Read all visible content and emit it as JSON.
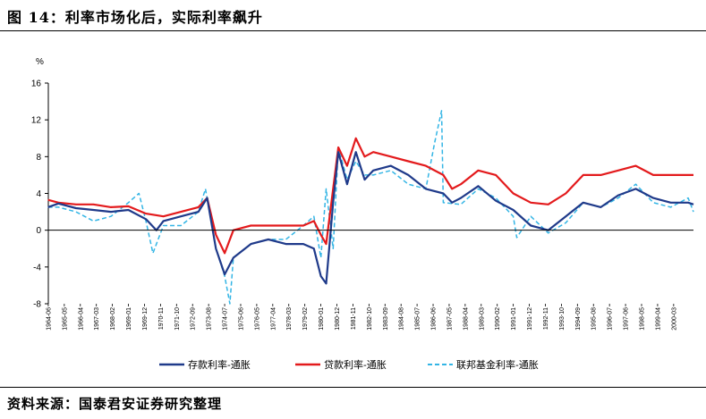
{
  "title": "图 14：利率市场化后，实际利率飙升",
  "source": "资料来源：国泰君安证券研究整理",
  "colors": {
    "deposit": "#1f3a8a",
    "loan": "#e31a1c",
    "fed": "#33b5e5"
  },
  "chart_data": {
    "type": "line",
    "ylabel": "%",
    "ylim": [
      -8,
      16
    ],
    "yticks": [
      -8,
      -4,
      0,
      4,
      8,
      12,
      16
    ],
    "x_tick_labels": [
      "1964-06",
      "1965-05",
      "1966-04",
      "1967-03",
      "1968-02",
      "1969-01",
      "1969-12",
      "1970-11",
      "1971-10",
      "1972-09",
      "1973-08",
      "1974-07",
      "1975-06",
      "1976-05",
      "1977-04",
      "1978-03",
      "1979-02",
      "1980-01",
      "1980-12",
      "1981-11",
      "1982-10",
      "1983-09",
      "1984-08",
      "1985-07",
      "1986-06",
      "1987-05",
      "1988-04",
      "1989-03",
      "1990-02",
      "1991-01",
      "1991-12",
      "1992-11",
      "1993-10",
      "1994-09",
      "1995-08",
      "1996-07",
      "1997-06",
      "1998-05",
      "1999-04",
      "2000-03"
    ],
    "x_range": [
      1964.42,
      2001.3
    ],
    "series": [
      {
        "name": "存款利率-通胀",
        "key": "deposit",
        "x": [
          1964.4,
          1965,
          1966,
          1967,
          1968,
          1969,
          1970,
          1970.6,
          1971,
          1972,
          1973,
          1973.5,
          1974,
          1974.5,
          1975,
          1976,
          1977,
          1978,
          1979,
          1979.6,
          1980,
          1980.3,
          1980.7,
          1981,
          1981.5,
          1982,
          1982.5,
          1983,
          1984,
          1985,
          1986,
          1987,
          1987.5,
          1988,
          1989,
          1990,
          1991,
          1992,
          1993,
          1994,
          1995,
          1996,
          1997,
          1998,
          1999,
          2000,
          2001,
          2001.3
        ],
        "values": [
          2.5,
          2.9,
          2.4,
          2.2,
          2.0,
          2.2,
          1.2,
          0.0,
          1.0,
          1.5,
          2.0,
          3.5,
          -2.0,
          -4.8,
          -3.0,
          -1.5,
          -1.0,
          -1.5,
          -1.5,
          -2.0,
          -5.0,
          -5.8,
          3.0,
          8.5,
          5.0,
          8.5,
          5.5,
          6.5,
          7.0,
          6.0,
          4.5,
          4.0,
          3.0,
          3.5,
          4.8,
          3.2,
          2.2,
          0.5,
          0.0,
          1.5,
          3.0,
          2.5,
          3.8,
          4.5,
          3.5,
          3.0,
          3.0,
          2.8
        ]
      },
      {
        "name": "贷款利率-通胀",
        "key": "loan",
        "x": [
          1964.4,
          1965,
          1966,
          1967,
          1968,
          1969,
          1970,
          1971,
          1972,
          1973,
          1973.5,
          1974,
          1974.5,
          1975,
          1976,
          1977,
          1978,
          1979,
          1979.6,
          1980,
          1980.3,
          1980.7,
          1981,
          1981.5,
          1982,
          1982.5,
          1983,
          1984,
          1985,
          1986,
          1987,
          1987.5,
          1988,
          1989,
          1990,
          1991,
          1992,
          1993,
          1994,
          1995,
          1996,
          1997,
          1998,
          1999,
          2000,
          2001,
          2001.3
        ],
        "values": [
          3.3,
          3.0,
          2.8,
          2.8,
          2.5,
          2.6,
          1.8,
          1.5,
          2.0,
          2.5,
          3.5,
          -0.5,
          -2.5,
          0.0,
          0.5,
          0.5,
          0.5,
          0.5,
          1.0,
          -0.5,
          -1.5,
          4.5,
          9.0,
          7.0,
          10.0,
          8.0,
          8.5,
          8.0,
          7.5,
          7.0,
          6.0,
          4.5,
          5.0,
          6.5,
          6.0,
          4.0,
          3.0,
          2.8,
          4.0,
          6.0,
          6.0,
          6.5,
          7.0,
          6.0,
          6.0,
          6.0,
          6.0
        ]
      },
      {
        "name": "联邦基金利率-通胀",
        "key": "fed",
        "x": [
          1964.4,
          1965,
          1966,
          1967,
          1968,
          1969,
          1969.6,
          1970,
          1970.4,
          1971,
          1972,
          1973,
          1973.4,
          1974,
          1974.5,
          1974.8,
          1975,
          1976,
          1977,
          1978,
          1979,
          1979.6,
          1980,
          1980.3,
          1980.7,
          1981,
          1981.5,
          1982,
          1982.5,
          1983,
          1984,
          1985,
          1986,
          1986.5,
          1986.9,
          1987,
          1988,
          1989,
          1990,
          1991,
          1991.2,
          1992,
          1993,
          1994,
          1995,
          1996,
          1997,
          1998,
          1999,
          2000,
          2001,
          2001.3
        ],
        "values": [
          2.5,
          2.5,
          2.0,
          1.0,
          1.5,
          3.0,
          4.0,
          1.0,
          -2.5,
          0.5,
          0.5,
          2.0,
          4.5,
          -2.0,
          -5.0,
          -8.0,
          -3.0,
          -1.5,
          -1.0,
          -1.0,
          0.5,
          1.5,
          -3.0,
          4.5,
          -2.0,
          9.0,
          5.5,
          7.5,
          6.0,
          6.0,
          6.5,
          5.0,
          4.5,
          9.5,
          13.0,
          3.0,
          2.8,
          4.5,
          3.5,
          1.5,
          -0.8,
          1.5,
          -0.3,
          0.8,
          3.0,
          2.5,
          3.5,
          5.0,
          3.0,
          2.5,
          3.5,
          2.0
        ]
      }
    ]
  }
}
